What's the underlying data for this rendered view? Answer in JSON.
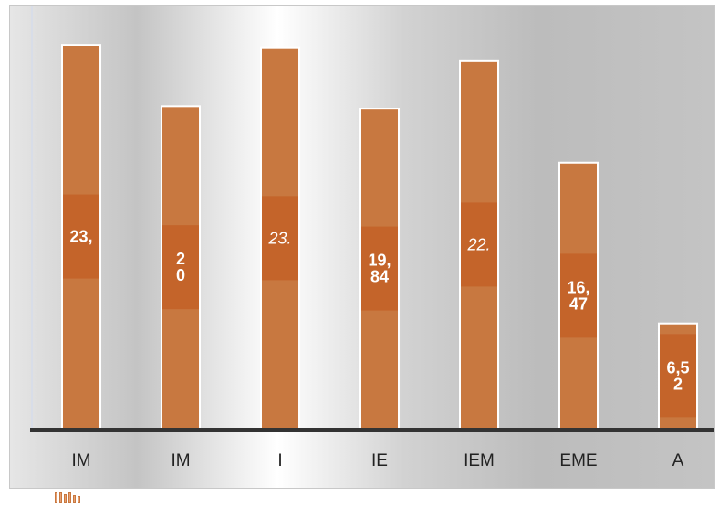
{
  "chart_data": {
    "type": "bar",
    "categories": [
      "IM",
      "IM",
      "I",
      "IE",
      "IEM",
      "EME",
      "A"
    ],
    "values": [
      23.8,
      20.0,
      23.6,
      19.84,
      22.8,
      16.47,
      6.52
    ],
    "data_labels": [
      [
        "23,"
      ],
      [
        "2",
        "0"
      ],
      [
        "23."
      ],
      [
        "19,",
        "84"
      ],
      [
        "22."
      ],
      [
        "16,",
        "47"
      ],
      [
        "6,5",
        "2"
      ]
    ],
    "italic_labels": [
      false,
      false,
      true,
      false,
      true,
      false,
      false
    ],
    "ylim": [
      0,
      24.6
    ],
    "grid": false,
    "colors": {
      "bar": "#c87840",
      "label_box": "#c4642a",
      "axis": "#333333",
      "bar_border": "#ffffff"
    }
  },
  "icons": {
    "thumbnail": "bar-chart-thumbnail-icon"
  }
}
